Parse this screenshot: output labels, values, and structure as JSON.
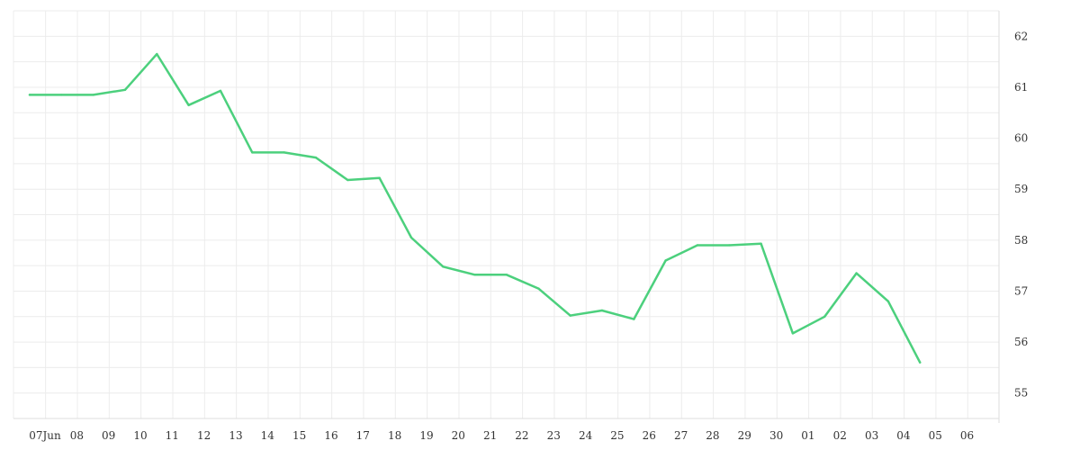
{
  "chart_data": {
    "type": "line",
    "title": "",
    "xlabel": "",
    "ylabel": "",
    "x": [
      "2023-06-07",
      "2023-06-08",
      "2023-06-09",
      "2023-06-10",
      "2023-06-11",
      "2023-06-12",
      "2023-06-13",
      "2023-06-14",
      "2023-06-15",
      "2023-06-16",
      "2023-06-17",
      "2023-06-18",
      "2023-06-19",
      "2023-06-20",
      "2023-06-21",
      "2023-06-22",
      "2023-06-23",
      "2023-06-24",
      "2023-06-25",
      "2023-06-26",
      "2023-06-27",
      "2023-06-28",
      "2023-06-29",
      "2023-06-30",
      "2023-07-01",
      "2023-07-02",
      "2023-07-03",
      "2023-07-04",
      "2023-07-05"
    ],
    "x_tick_labels": [
      "07Jun",
      "08",
      "09",
      "10",
      "11",
      "12",
      "13",
      "14",
      "15",
      "16",
      "17",
      "18",
      "19",
      "20",
      "21",
      "22",
      "23",
      "24",
      "25",
      "26",
      "27",
      "28",
      "29",
      "30",
      "01",
      "02",
      "03",
      "04",
      "05",
      "06"
    ],
    "y_tick_labels": [
      "55",
      "56",
      "57",
      "58",
      "59",
      "60",
      "61",
      "62"
    ],
    "y_axis_position": "right",
    "ylim": [
      54.5,
      62.5
    ],
    "grid": true,
    "legend": "none",
    "series": [
      {
        "color": "#4cd07d",
        "values": [
          60.85,
          60.85,
          60.85,
          60.95,
          61.65,
          60.65,
          60.93,
          59.72,
          59.72,
          59.62,
          59.18,
          59.22,
          58.05,
          57.48,
          57.32,
          57.32,
          57.05,
          56.52,
          56.62,
          56.45,
          57.6,
          57.9,
          57.9,
          57.93,
          56.17,
          56.5,
          57.35,
          56.8,
          55.6
        ]
      }
    ],
    "last_value": 55.6
  }
}
